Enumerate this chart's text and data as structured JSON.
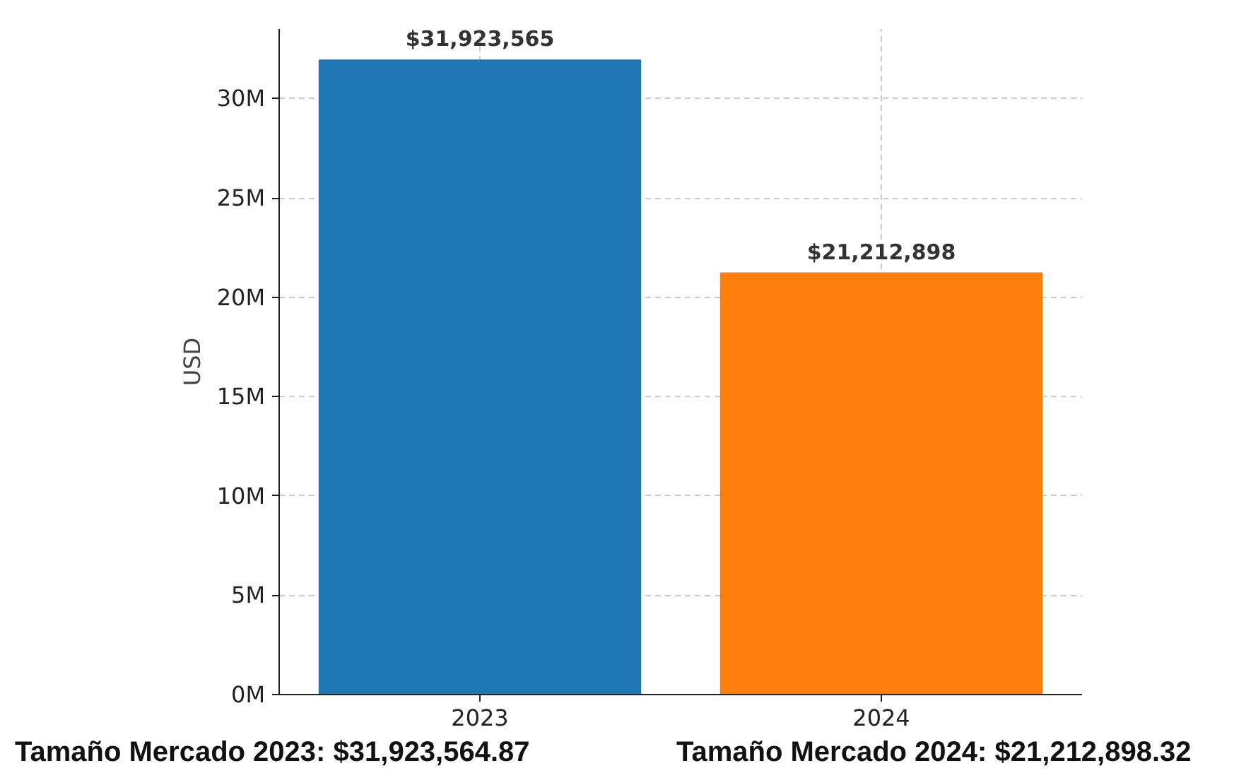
{
  "chart_data": {
    "type": "bar",
    "categories": [
      "2023",
      "2024"
    ],
    "values": [
      31923565,
      21212898
    ],
    "colors": [
      "#1f77b4",
      "#ff7f0e"
    ],
    "value_labels": [
      "$31,923,565",
      "$21,212,898"
    ],
    "ylabel": "USD",
    "ylim": [
      0,
      33500000
    ],
    "yticks": [
      {
        "value": 0,
        "label": "0M"
      },
      {
        "value": 5000000,
        "label": "5M"
      },
      {
        "value": 10000000,
        "label": "10M"
      },
      {
        "value": 15000000,
        "label": "15M"
      },
      {
        "value": 20000000,
        "label": "20M"
      },
      {
        "value": 25000000,
        "label": "25M"
      },
      {
        "value": 30000000,
        "label": "30M"
      }
    ],
    "grid": true,
    "annotations": [
      "Tamaño Mercado 2023:  $31,923,564.87",
      "Tamaño Mercado 2024:  $21,212,898.32"
    ]
  }
}
